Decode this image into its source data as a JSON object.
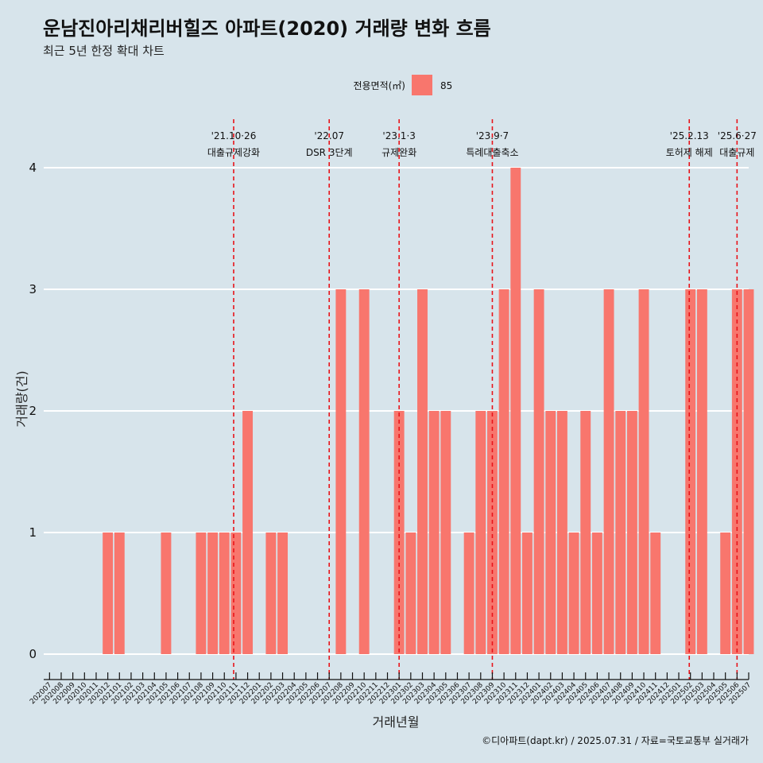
{
  "title": "운남진아리채리버힐즈 아파트(2020) 거래량 변화 흐름",
  "subtitle": "최근 5년 한정 확대 차트",
  "caption": "©디아파트(dapt.kr) / 2025.07.31 / 자료=국토교통부 실거래가",
  "legend": {
    "title": "전용면적(㎡)",
    "items": [
      {
        "label": "85",
        "color": "#f8766d"
      }
    ]
  },
  "chart_data": {
    "type": "bar",
    "xlabel": "거래년월",
    "ylabel": "거래량(건)",
    "ylim": [
      0,
      4
    ],
    "yticks": [
      0,
      1,
      2,
      3,
      4
    ],
    "grid": true,
    "legend_position": "top",
    "bar_color": "#f8766d",
    "categories": [
      "202007",
      "202008",
      "202009",
      "202010",
      "202011",
      "202012",
      "202101",
      "202102",
      "202103",
      "202104",
      "202105",
      "202106",
      "202107",
      "202108",
      "202109",
      "202110",
      "202111",
      "202112",
      "202201",
      "202202",
      "202203",
      "202204",
      "202205",
      "202206",
      "202207",
      "202208",
      "202209",
      "202210",
      "202211",
      "202212",
      "202301",
      "202302",
      "202303",
      "202304",
      "202305",
      "202306",
      "202307",
      "202308",
      "202309",
      "202310",
      "202311",
      "202312",
      "202401",
      "202402",
      "202403",
      "202404",
      "202405",
      "202406",
      "202407",
      "202408",
      "202409",
      "202410",
      "202411",
      "202412",
      "202501",
      "202502",
      "202503",
      "202504",
      "202505",
      "202506",
      "202507"
    ],
    "series": [
      {
        "values": [
          0,
          0,
          0,
          0,
          0,
          1,
          1,
          0,
          0,
          0,
          1,
          0,
          0,
          1,
          1,
          1,
          1,
          2,
          0,
          1,
          1,
          0,
          0,
          0,
          0,
          3,
          0,
          3,
          0,
          0,
          2,
          1,
          3,
          2,
          2,
          0,
          1,
          2,
          2,
          3,
          4,
          1,
          3,
          2,
          2,
          1,
          2,
          1,
          3,
          2,
          2,
          3,
          1,
          0,
          0,
          3,
          3,
          0,
          1,
          3,
          3
        ]
      }
    ],
    "events": [
      {
        "date": "'21.10·26",
        "label": "대출규제강화",
        "index": 15.8
      },
      {
        "date": "'22.07",
        "label": "DSR 3단계",
        "index": 24.0
      },
      {
        "date": "'23.1·3",
        "label": "규제완화",
        "index": 30.0
      },
      {
        "date": "'23.9·7",
        "label": "특례대출축소",
        "index": 38.0
      },
      {
        "date": "'25.2.13",
        "label": "토허제 해제",
        "index": 54.9
      },
      {
        "date": "'25.6·27",
        "label": "대출규제",
        "index": 59.0
      }
    ]
  }
}
